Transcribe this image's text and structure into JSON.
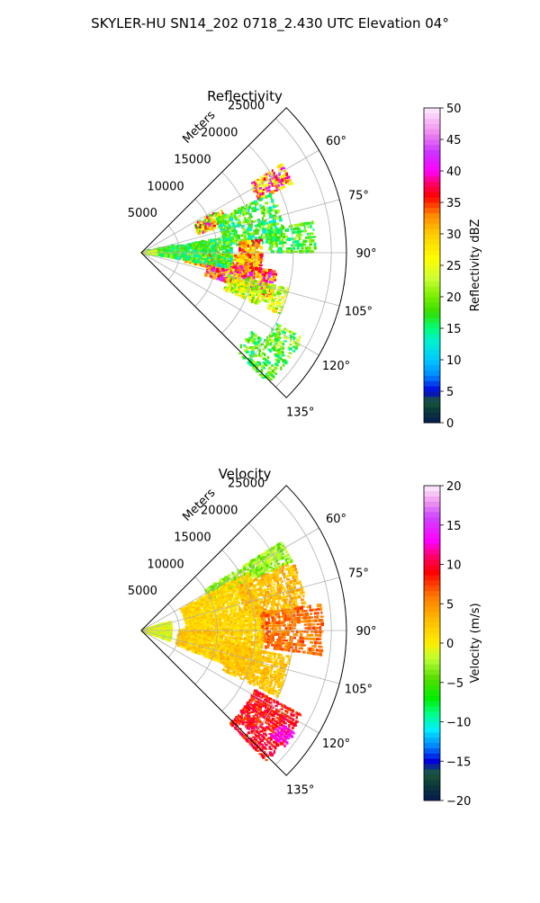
{
  "figure": {
    "title": "SKYLER-HU  SN14_202  0718_2.430 UTC Elevation 04°"
  },
  "chart_data": [
    {
      "type": "heatmap",
      "projection": "polar-sector",
      "title": "Reflectivity",
      "radial_label": "Meters",
      "range_ticks": [
        5000,
        10000,
        15000,
        20000,
        25000
      ],
      "range_max": 27000,
      "azimuth_ticks": [
        "60°",
        "75°",
        "90°",
        "105°",
        "120°",
        "135°"
      ],
      "azimuth_tick_values": [
        60,
        75,
        90,
        105,
        120,
        135
      ],
      "azimuth_range": [
        45,
        135
      ],
      "grid": true,
      "colorbar": {
        "label": "Reflectivity dBZ",
        "min": 0,
        "max": 50,
        "ticks": [
          0,
          5,
          10,
          15,
          20,
          25,
          30,
          35,
          40,
          45,
          50
        ],
        "stops": [
          {
            "v": 0,
            "c": "#081a52"
          },
          {
            "v": 2,
            "c": "#0a3a3a"
          },
          {
            "v": 3.5,
            "c": "#1a5a3a"
          },
          {
            "v": 5,
            "c": "#0000dd"
          },
          {
            "v": 7.5,
            "c": "#0088ff"
          },
          {
            "v": 10,
            "c": "#00c8ff"
          },
          {
            "v": 13,
            "c": "#00f0d0"
          },
          {
            "v": 15,
            "c": "#00ff7a"
          },
          {
            "v": 17.5,
            "c": "#33dd00"
          },
          {
            "v": 20,
            "c": "#77ee00"
          },
          {
            "v": 23,
            "c": "#ccff33"
          },
          {
            "v": 26,
            "c": "#ffff00"
          },
          {
            "v": 30,
            "c": "#ffcc00"
          },
          {
            "v": 33,
            "c": "#ff8800"
          },
          {
            "v": 36,
            "c": "#ff0000"
          },
          {
            "v": 38,
            "c": "#ff0066"
          },
          {
            "v": 40,
            "c": "#ff00ff"
          },
          {
            "v": 43,
            "c": "#cc33ff"
          },
          {
            "v": 46,
            "c": "#ee88ee"
          },
          {
            "v": 50,
            "c": "#ffeeff"
          }
        ]
      },
      "cells": [
        {
          "az0": 78,
          "az1": 98,
          "r0": 800,
          "r1": 4500,
          "v0": 14,
          "v1": 22,
          "d": 0.85
        },
        {
          "az0": 84,
          "az1": 96,
          "r0": 200,
          "r1": 2000,
          "v0": 22,
          "v1": 26,
          "d": 0.9
        },
        {
          "az0": 62,
          "az1": 72,
          "r0": 8000,
          "r1": 12000,
          "v0": 16,
          "v1": 40,
          "d": 0.75
        },
        {
          "az0": 58,
          "az1": 66,
          "r0": 17000,
          "r1": 22000,
          "v0": 24,
          "v1": 44,
          "d": 0.8
        },
        {
          "az0": 66,
          "az1": 86,
          "r0": 11000,
          "r1": 19000,
          "v0": 12,
          "v1": 22,
          "d": 0.6
        },
        {
          "az0": 84,
          "az1": 100,
          "r0": 13000,
          "r1": 16000,
          "v0": 24,
          "v1": 38,
          "d": 0.85
        },
        {
          "az0": 92,
          "az1": 102,
          "r0": 6000,
          "r1": 14000,
          "v0": 22,
          "v1": 36,
          "d": 0.85
        },
        {
          "az0": 98,
          "az1": 110,
          "r0": 9000,
          "r1": 18000,
          "v0": 26,
          "v1": 44,
          "d": 0.85
        },
        {
          "az0": 104,
          "az1": 114,
          "r0": 12000,
          "r1": 20000,
          "v0": 18,
          "v1": 30,
          "d": 0.7
        },
        {
          "az0": 80,
          "az1": 100,
          "r0": 4000,
          "r1": 12000,
          "v0": 12,
          "v1": 22,
          "d": 0.7
        },
        {
          "az0": 80,
          "az1": 90,
          "r0": 17000,
          "r1": 23000,
          "v0": 14,
          "v1": 22,
          "d": 0.65
        },
        {
          "az0": 118,
          "az1": 126,
          "r0": 20000,
          "r1": 24000,
          "v0": 14,
          "v1": 24,
          "d": 0.6
        },
        {
          "az0": 126,
          "az1": 136,
          "r0": 18000,
          "r1": 24000,
          "v0": 14,
          "v1": 22,
          "d": 0.55
        }
      ]
    },
    {
      "type": "heatmap",
      "projection": "polar-sector",
      "title": "Velocity",
      "radial_label": "Meters",
      "range_ticks": [
        5000,
        10000,
        15000,
        20000,
        25000
      ],
      "range_max": 27000,
      "azimuth_ticks": [
        "60°",
        "75°",
        "90°",
        "105°",
        "120°",
        "135°"
      ],
      "azimuth_tick_values": [
        60,
        75,
        90,
        105,
        120,
        135
      ],
      "azimuth_range": [
        45,
        135
      ],
      "grid": true,
      "colorbar": {
        "label": "Velocity (m/s)",
        "min": -20,
        "max": 20,
        "ticks": [
          -20,
          -15,
          -10,
          -5,
          0,
          5,
          10,
          15,
          20
        ],
        "stops": [
          {
            "v": -20,
            "c": "#081a52"
          },
          {
            "v": -18,
            "c": "#0a3a3a"
          },
          {
            "v": -16.5,
            "c": "#1a5a3a"
          },
          {
            "v": -15,
            "c": "#0000dd"
          },
          {
            "v": -13,
            "c": "#0088ff"
          },
          {
            "v": -11,
            "c": "#00eeff"
          },
          {
            "v": -9,
            "c": "#00ff88"
          },
          {
            "v": -7,
            "c": "#00ee00"
          },
          {
            "v": -4.5,
            "c": "#55dd00"
          },
          {
            "v": -2,
            "c": "#bbff33"
          },
          {
            "v": 0,
            "c": "#ffee00"
          },
          {
            "v": 3,
            "c": "#ffbb00"
          },
          {
            "v": 6,
            "c": "#ff7700"
          },
          {
            "v": 9,
            "c": "#ff0000"
          },
          {
            "v": 11,
            "c": "#ff0066"
          },
          {
            "v": 13,
            "c": "#ff00ff"
          },
          {
            "v": 16,
            "c": "#cc44ff"
          },
          {
            "v": 18,
            "c": "#ee99ee"
          },
          {
            "v": 20,
            "c": "#ffeeff"
          }
        ]
      },
      "cells": [
        {
          "az0": 74,
          "az1": 110,
          "r0": 300,
          "r1": 4000,
          "v0": -3,
          "v1": 1,
          "d": 0.9
        },
        {
          "az0": 58,
          "az1": 66,
          "r0": 10000,
          "r1": 22000,
          "v0": -5,
          "v1": -1,
          "d": 0.8
        },
        {
          "az0": 62,
          "az1": 90,
          "r0": 6000,
          "r1": 16000,
          "v0": 0,
          "v1": 3,
          "d": 0.8
        },
        {
          "az0": 66,
          "az1": 84,
          "r0": 14000,
          "r1": 22000,
          "v0": 1,
          "v1": 5,
          "d": 0.7
        },
        {
          "az0": 82,
          "az1": 98,
          "r0": 16000,
          "r1": 24000,
          "v0": 4,
          "v1": 8,
          "d": 0.75
        },
        {
          "az0": 90,
          "az1": 112,
          "r0": 5000,
          "r1": 16000,
          "v0": 0,
          "v1": 4,
          "d": 0.85
        },
        {
          "az0": 100,
          "az1": 116,
          "r0": 12000,
          "r1": 20000,
          "v0": 1,
          "v1": 4,
          "d": 0.75
        },
        {
          "az0": 118,
          "az1": 136,
          "r0": 17000,
          "r1": 24000,
          "v0": 7,
          "v1": 11,
          "d": 0.8
        },
        {
          "az0": 124,
          "az1": 130,
          "r0": 22000,
          "r1": 24500,
          "v0": 12,
          "v1": 14,
          "d": 0.7
        }
      ]
    }
  ]
}
